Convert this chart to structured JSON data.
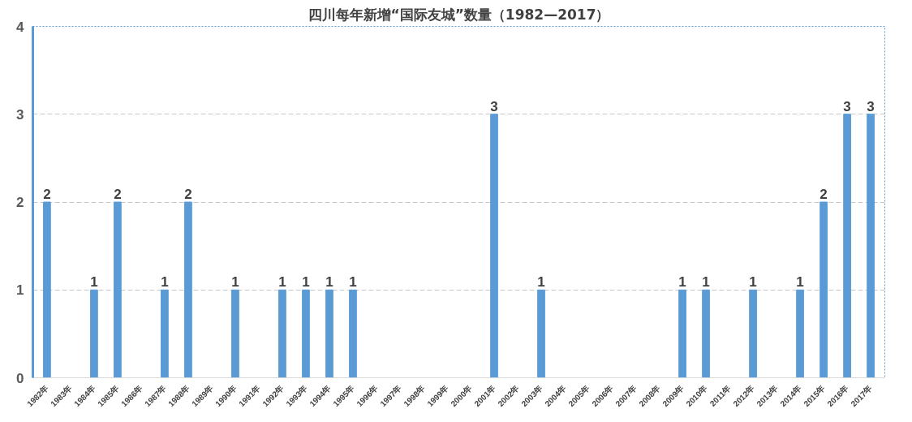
{
  "chart_data": {
    "type": "bar",
    "title": "四川每年新增“国际友城”数量（1982—2017）",
    "categories": [
      "1982年",
      "1983年",
      "1984年",
      "1985年",
      "1986年",
      "1987年",
      "1988年",
      "1989年",
      "1990年",
      "1991年",
      "1992年",
      "1993年",
      "1994年",
      "1995年",
      "1996年",
      "1997年",
      "1998年",
      "1999年",
      "2000年",
      "2001年",
      "2002年",
      "2003年",
      "2004年",
      "2005年",
      "2006年",
      "2007年",
      "2008年",
      "2009年",
      "2010年",
      "2011年",
      "2012年",
      "2013年",
      "2014年",
      "2015年",
      "2016年",
      "2017年"
    ],
    "values": [
      2,
      0,
      1,
      2,
      0,
      1,
      2,
      0,
      1,
      0,
      1,
      1,
      1,
      1,
      0,
      0,
      0,
      0,
      0,
      3,
      0,
      1,
      0,
      0,
      0,
      0,
      0,
      1,
      1,
      0,
      1,
      0,
      1,
      2,
      3,
      3
    ],
    "value_labels": [
      "2",
      null,
      "1",
      "2",
      null,
      "1",
      "2",
      null,
      "1",
      null,
      "1",
      "1",
      "1",
      "1",
      null,
      null,
      null,
      null,
      null,
      "3",
      null,
      "1",
      null,
      null,
      null,
      null,
      null,
      "1",
      "1",
      null,
      "1",
      null,
      "1",
      "2",
      "3",
      "3"
    ],
    "color": "#5b9bd5",
    "ylim": [
      0,
      4
    ],
    "yticks": [
      0,
      1,
      2,
      3,
      4
    ],
    "grid": "y"
  }
}
